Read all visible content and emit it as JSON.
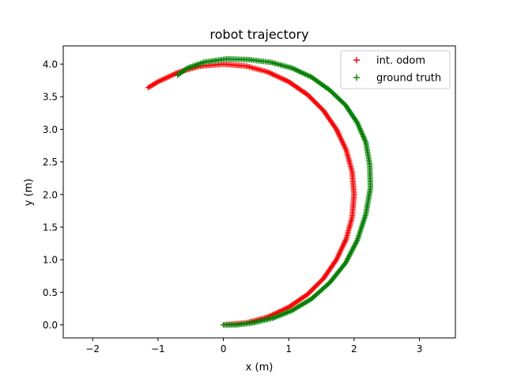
{
  "chart_data": {
    "type": "scatter",
    "title": "robot trajectory",
    "xlabel": "x (m)",
    "ylabel": "y (m)",
    "xlim": [
      -2.45,
      3.55
    ],
    "ylim": [
      -0.2,
      4.28
    ],
    "xticks": [
      -2,
      -1,
      0,
      1,
      2,
      3
    ],
    "xtick_labels": [
      "−2",
      "−1",
      "0",
      "1",
      "2",
      "3"
    ],
    "yticks": [
      0.0,
      0.5,
      1.0,
      1.5,
      2.0,
      2.5,
      3.0,
      3.5,
      4.0
    ],
    "ytick_labels": [
      "0.0",
      "0.5",
      "1.0",
      "1.5",
      "2.0",
      "2.5",
      "3.0",
      "3.5",
      "4.0"
    ],
    "grid": false,
    "legend_position": "upper-right",
    "marker": "+",
    "series": [
      {
        "name": "int. odom",
        "color": "#ff0000",
        "trajectory": "arc from origin counter-clockwise about (0, 2) with radius 2, ending near (-1.15, 3.64)",
        "x": [
          0.0,
          0.35,
          0.68,
          1.0,
          1.29,
          1.53,
          1.73,
          1.88,
          1.97,
          2.0,
          1.97,
          1.88,
          1.73,
          1.53,
          1.29,
          1.0,
          0.68,
          0.35,
          0.0,
          -0.35,
          -0.68,
          -1.0,
          -1.15
        ],
        "y": [
          0.0,
          0.03,
          0.12,
          0.27,
          0.47,
          0.71,
          1.0,
          1.32,
          1.65,
          2.0,
          2.35,
          2.68,
          3.0,
          3.29,
          3.53,
          3.73,
          3.88,
          3.97,
          4.0,
          3.97,
          3.88,
          3.73,
          3.64
        ]
      },
      {
        "name": "ground truth",
        "color": "#008000",
        "trajectory": "wider arc from origin bulging to x ≈ 2.25, ending near (-0.7, 3.83)",
        "x": [
          0.0,
          0.2,
          0.45,
          0.75,
          1.05,
          1.35,
          1.63,
          1.87,
          2.05,
          2.18,
          2.25,
          2.24,
          2.18,
          2.05,
          1.87,
          1.63,
          1.35,
          1.05,
          0.72,
          0.38,
          0.05,
          -0.3,
          -0.55,
          -0.7
        ],
        "y": [
          0.0,
          0.0,
          0.03,
          0.1,
          0.22,
          0.4,
          0.65,
          0.95,
          1.3,
          1.7,
          2.1,
          2.45,
          2.8,
          3.1,
          3.37,
          3.6,
          3.8,
          3.94,
          4.03,
          4.07,
          4.08,
          4.03,
          3.94,
          3.83
        ]
      }
    ]
  }
}
